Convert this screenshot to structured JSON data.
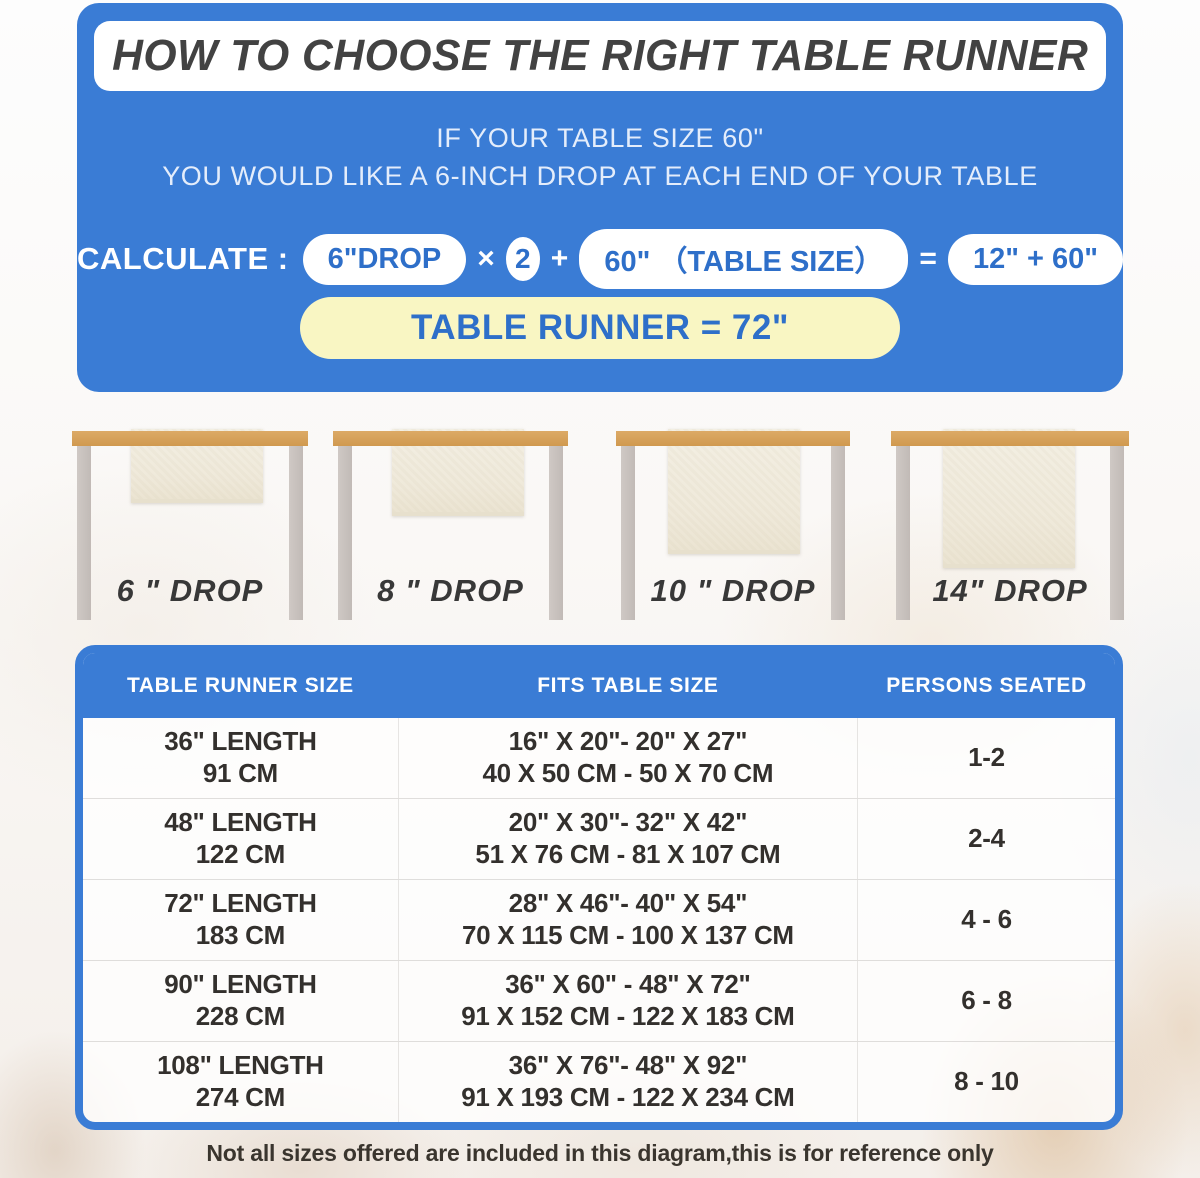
{
  "title": "HOW TO CHOOSE THE RIGHT TABLE RUNNER",
  "intro": {
    "line1": "IF YOUR TABLE SIZE 60\"",
    "line2": "YOU WOULD LIKE A 6-INCH DROP AT EACH END OF YOUR TABLE"
  },
  "calculate": {
    "label": "CALCULATE :",
    "drop_pill": "6\"DROP",
    "times_sign": "×",
    "multiplier": "2",
    "plus_sign": "+",
    "table_pill": "60\" （TABLE SIZE）",
    "equals_sign": "=",
    "sum_pill": "12\" + 60\"",
    "result": "TABLE RUNNER = 72\""
  },
  "drops": {
    "figures": [
      {
        "label": "6 \" DROP",
        "drop_inches": 6
      },
      {
        "label": "8 \" DROP",
        "drop_inches": 8
      },
      {
        "label": "10 \" DROP",
        "drop_inches": 10
      },
      {
        "label": "14\" DROP",
        "drop_inches": 14
      }
    ]
  },
  "size_table": {
    "headers": [
      "TABLE RUNNER SIZE",
      "FITS TABLE SIZE",
      "PERSONS SEATED"
    ],
    "rows": [
      {
        "runner_in": "36\" LENGTH",
        "runner_cm": "91 CM",
        "fits_in": "16\" X 20\"- 20\" X 27\"",
        "fits_cm": "40 X 50 CM - 50 X 70 CM",
        "persons": "1-2"
      },
      {
        "runner_in": "48\" LENGTH",
        "runner_cm": "122 CM",
        "fits_in": "20\" X 30\"- 32\" X 42\"",
        "fits_cm": "51 X 76 CM - 81 X 107 CM",
        "persons": "2-4"
      },
      {
        "runner_in": "72\" LENGTH",
        "runner_cm": "183 CM",
        "fits_in": "28\" X 46\"- 40\" X 54\"",
        "fits_cm": "70 X 115 CM - 100 X 137 CM",
        "persons": "4 - 6"
      },
      {
        "runner_in": "90\" LENGTH",
        "runner_cm": "228 CM",
        "fits_in": "36\" X 60\" - 48\" X 72\"",
        "fits_cm": "91 X 152 CM - 122 X 183 CM",
        "persons": "6 - 8"
      },
      {
        "runner_in": "108\" LENGTH",
        "runner_cm": "274 CM",
        "fits_in": "36\" X 76\"- 48\" X 92\"",
        "fits_cm": "91 X 193 CM - 122 X 234 CM",
        "persons": "8 - 10"
      }
    ]
  },
  "footer_note": "Not all sizes offered are included in this diagram,this is for reference only",
  "colors": {
    "panel_blue": "#3a7cd5",
    "pill_text_blue": "#2e6fc9",
    "result_yellow": "#f9f6c3",
    "wood": "#d7a35c",
    "leg_gray": "#c8c2be",
    "runner_beige": "#f0ebdd",
    "dark_text": "#33302d"
  }
}
